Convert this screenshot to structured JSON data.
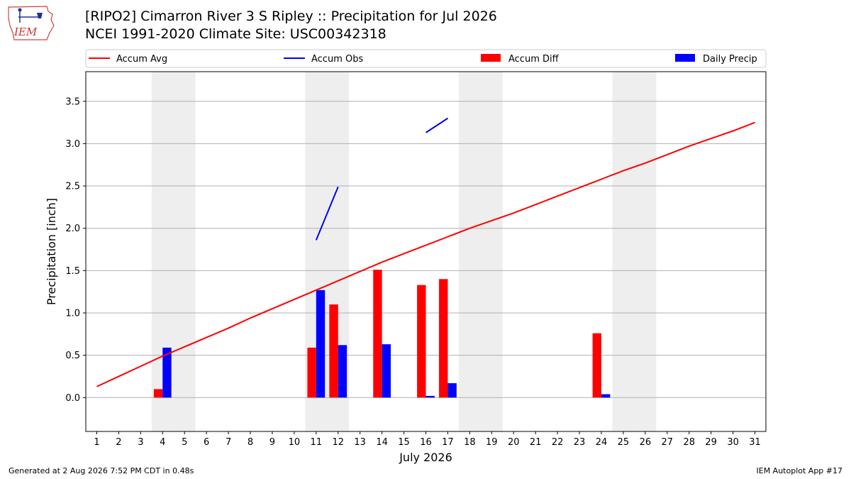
{
  "header": {
    "title_line1": "[RIPO2] Cimarron River 3 S Ripley :: Precipitation for Jul 2026",
    "title_line2": "NCEI 1991-2020 Climate Site: USC00342318",
    "logo_text": "IEM"
  },
  "colors": {
    "avg": "#ff0000",
    "obs": "#0000ff",
    "diff": "#ff0000",
    "daily": "#0000ff",
    "weekend_shade": "#eeeeee",
    "grid": "#b0b0b0"
  },
  "chart_data": {
    "type": "bar",
    "xlabel": "July 2026",
    "ylabel": "Precipitation [inch]",
    "xlim": [
      0.5,
      31.5
    ],
    "ylim": [
      -0.4,
      3.85
    ],
    "yticks": [
      0.0,
      0.5,
      1.0,
      1.5,
      2.0,
      2.5,
      3.0,
      3.5
    ],
    "grid": "horizontal",
    "legend_position": "top",
    "x": [
      1,
      2,
      3,
      4,
      5,
      6,
      7,
      8,
      9,
      10,
      11,
      12,
      13,
      14,
      15,
      16,
      17,
      18,
      19,
      20,
      21,
      22,
      23,
      24,
      25,
      26,
      27,
      28,
      29,
      30,
      31
    ],
    "weekend_spans": [
      [
        3.5,
        5.5
      ],
      [
        10.5,
        12.5
      ],
      [
        17.5,
        19.5
      ],
      [
        24.5,
        26.5
      ]
    ],
    "series": [
      {
        "name": "Accum Avg",
        "kind": "line",
        "values": [
          0.13,
          0.25,
          0.37,
          0.49,
          0.6,
          0.71,
          0.82,
          0.94,
          1.05,
          1.16,
          1.27,
          1.38,
          1.49,
          1.6,
          1.7,
          1.8,
          1.9,
          2.0,
          2.09,
          2.18,
          2.28,
          2.38,
          2.48,
          2.58,
          2.68,
          2.77,
          2.87,
          2.97,
          3.06,
          3.15,
          3.25
        ]
      },
      {
        "name": "Accum Obs",
        "kind": "line",
        "values": [
          null,
          null,
          null,
          null,
          null,
          null,
          null,
          null,
          null,
          null,
          1.86,
          2.49,
          null,
          null,
          null,
          3.13,
          3.3,
          null,
          null,
          null,
          null,
          null,
          null,
          null,
          null,
          null,
          null,
          null,
          null,
          null,
          null
        ]
      },
      {
        "name": "Accum Diff",
        "kind": "bar",
        "values": [
          null,
          null,
          null,
          0.1,
          null,
          null,
          null,
          null,
          null,
          null,
          0.59,
          1.1,
          null,
          1.51,
          null,
          1.33,
          1.4,
          null,
          null,
          null,
          null,
          null,
          null,
          0.76,
          null,
          null,
          null,
          null,
          null,
          null,
          null
        ]
      },
      {
        "name": "Daily Precip",
        "kind": "bar",
        "values": [
          0,
          0,
          0,
          0.59,
          0,
          0,
          0,
          0,
          0,
          0,
          1.27,
          0.62,
          0,
          0.63,
          0,
          0.02,
          0.17,
          0,
          0,
          0,
          0,
          0,
          0,
          0.04,
          0,
          0,
          0,
          0,
          0,
          0,
          0
        ]
      }
    ]
  },
  "footer": {
    "generated": "Generated at 2 Aug 2026 7:52 PM CDT in 0.48s",
    "app": "IEM Autoplot App #17"
  }
}
